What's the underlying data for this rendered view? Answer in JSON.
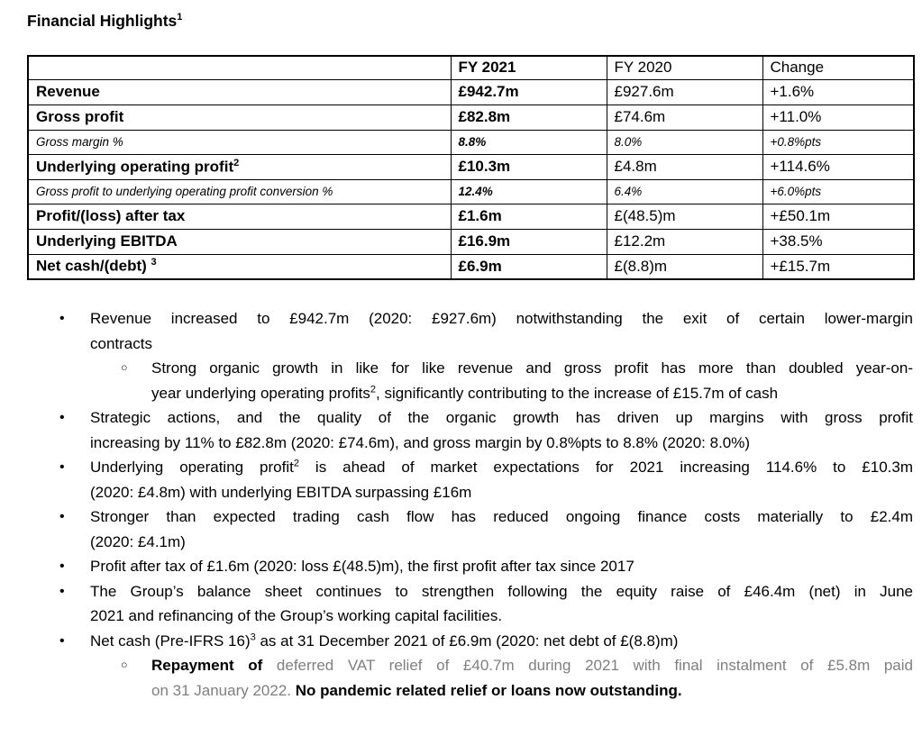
{
  "colors": {
    "text": "#000000",
    "muted_text": "#7f7f7f",
    "border": "#000000"
  },
  "title": {
    "text": "Financial Highlights",
    "superscript": "1"
  },
  "table": {
    "headers": [
      {
        "label": "",
        "bold": false
      },
      {
        "label": "FY 2021",
        "bold": true
      },
      {
        "label": "FY 2020",
        "bold": false
      },
      {
        "label": "Change",
        "bold": false
      }
    ],
    "rows": [
      {
        "label": "Revenue",
        "sup": "",
        "fy2021": "£942.7m",
        "fy2020": "£927.6m",
        "change": "+1.6%",
        "kind": "primary"
      },
      {
        "label": "Gross profit",
        "sup": "",
        "fy2021": "£82.8m",
        "fy2020": "£74.6m",
        "change": "+11.0%",
        "kind": "primary"
      },
      {
        "label": "Gross margin %",
        "sup": "",
        "fy2021": "8.8%",
        "fy2020": "8.0%",
        "change": "+0.8%pts",
        "kind": "sub"
      },
      {
        "label": "Underlying operating profit",
        "sup": "2",
        "fy2021": "£10.3m",
        "fy2020": "£4.8m",
        "change": "+114.6%",
        "kind": "primary"
      },
      {
        "label": "Gross profit to underlying operating profit conversion %",
        "sup": "",
        "fy2021": "12.4%",
        "fy2020": "6.4%",
        "change": "+6.0%pts",
        "kind": "sub"
      },
      {
        "label": "Profit/(loss) after tax",
        "sup": "",
        "fy2021": "£1.6m",
        "fy2020": "£(48.5)m",
        "change": "+£50.1m",
        "kind": "primary"
      },
      {
        "label": "Underlying EBITDA",
        "sup": "",
        "fy2021": "£16.9m",
        "fy2020": "£12.2m",
        "change": "+38.5%",
        "kind": "primary"
      },
      {
        "label": "Net cash/(debt) ",
        "sup": "3",
        "fy2021": "£6.9m",
        "fy2020": "£(8.8)m",
        "change": "+£15.7m",
        "kind": "primary"
      }
    ]
  },
  "list": {
    "bullet_glyph": "•",
    "sub_bullet_glyph": "○",
    "bullets": [
      {
        "level": 1,
        "lines": [
          [
            {
              "t": "Revenue increased to £942.7m (2020: £927.6m) notwithstanding the exit of certain lower-margin"
            }
          ],
          [
            {
              "t": "contracts"
            }
          ]
        ]
      },
      {
        "level": 2,
        "lines": [
          [
            {
              "t": "Strong organic growth in like for like revenue and gross profit has more than doubled year-on-"
            }
          ],
          [
            {
              "t": "year underlying operating profits"
            },
            {
              "t": "2",
              "sup": true
            },
            {
              "t": ", significantly contributing to the increase of £15.7m of cash"
            }
          ]
        ]
      },
      {
        "level": 1,
        "lines": [
          [
            {
              "t": "Strategic actions, and the quality of the organic growth has driven up margins with gross profit"
            }
          ],
          [
            {
              "t": "increasing by 11% to £82.8m (2020: £74.6m), and gross margin by 0.8%pts to 8.8% (2020: 8.0%)"
            }
          ]
        ]
      },
      {
        "level": 1,
        "lines": [
          [
            {
              "t": "Underlying operating profit"
            },
            {
              "t": "2",
              "sup": true
            },
            {
              "t": " is ahead of market expectations for 2021 increasing 114.6% to £10.3m"
            }
          ],
          [
            {
              "t": "(2020: £4.8m) with underlying EBITDA surpassing £16m"
            }
          ]
        ]
      },
      {
        "level": 1,
        "lines": [
          [
            {
              "t": "Stronger than expected trading cash flow has reduced ongoing finance costs materially to £2.4m"
            }
          ],
          [
            {
              "t": "(2020: £4.1m)"
            }
          ]
        ]
      },
      {
        "level": 1,
        "lines": [
          [
            {
              "t": "Profit after tax of £1.6m (2020: loss £(48.5)m), the first profit after tax since 2017"
            }
          ]
        ]
      },
      {
        "level": 1,
        "lines": [
          [
            {
              "t": "The Group’s balance sheet continues to strengthen following the equity raise of £46.4m (net) in June"
            }
          ],
          [
            {
              "t": "2021 and refinancing of the Group’s working capital facilities."
            }
          ]
        ]
      },
      {
        "level": 1,
        "lines": [
          [
            {
              "t": "Net cash (Pre-IFRS 16)"
            },
            {
              "t": "3",
              "sup": true
            },
            {
              "t": " as at 31 December 2021 of £6.9m (2020: net debt of £(8.8)m)"
            }
          ]
        ]
      },
      {
        "level": 2,
        "lines": [
          [
            {
              "t": "Repayment of ",
              "bold": true
            },
            {
              "t": "deferred VAT relief of £40.7m during 2021 with final instalment of £5.8m paid",
              "gray": true
            }
          ],
          [
            {
              "t": "on 31 January 2022. ",
              "gray": true
            },
            {
              "t": "No pandemic related relief or loans now outstanding.",
              "bold": true
            }
          ]
        ]
      }
    ]
  }
}
